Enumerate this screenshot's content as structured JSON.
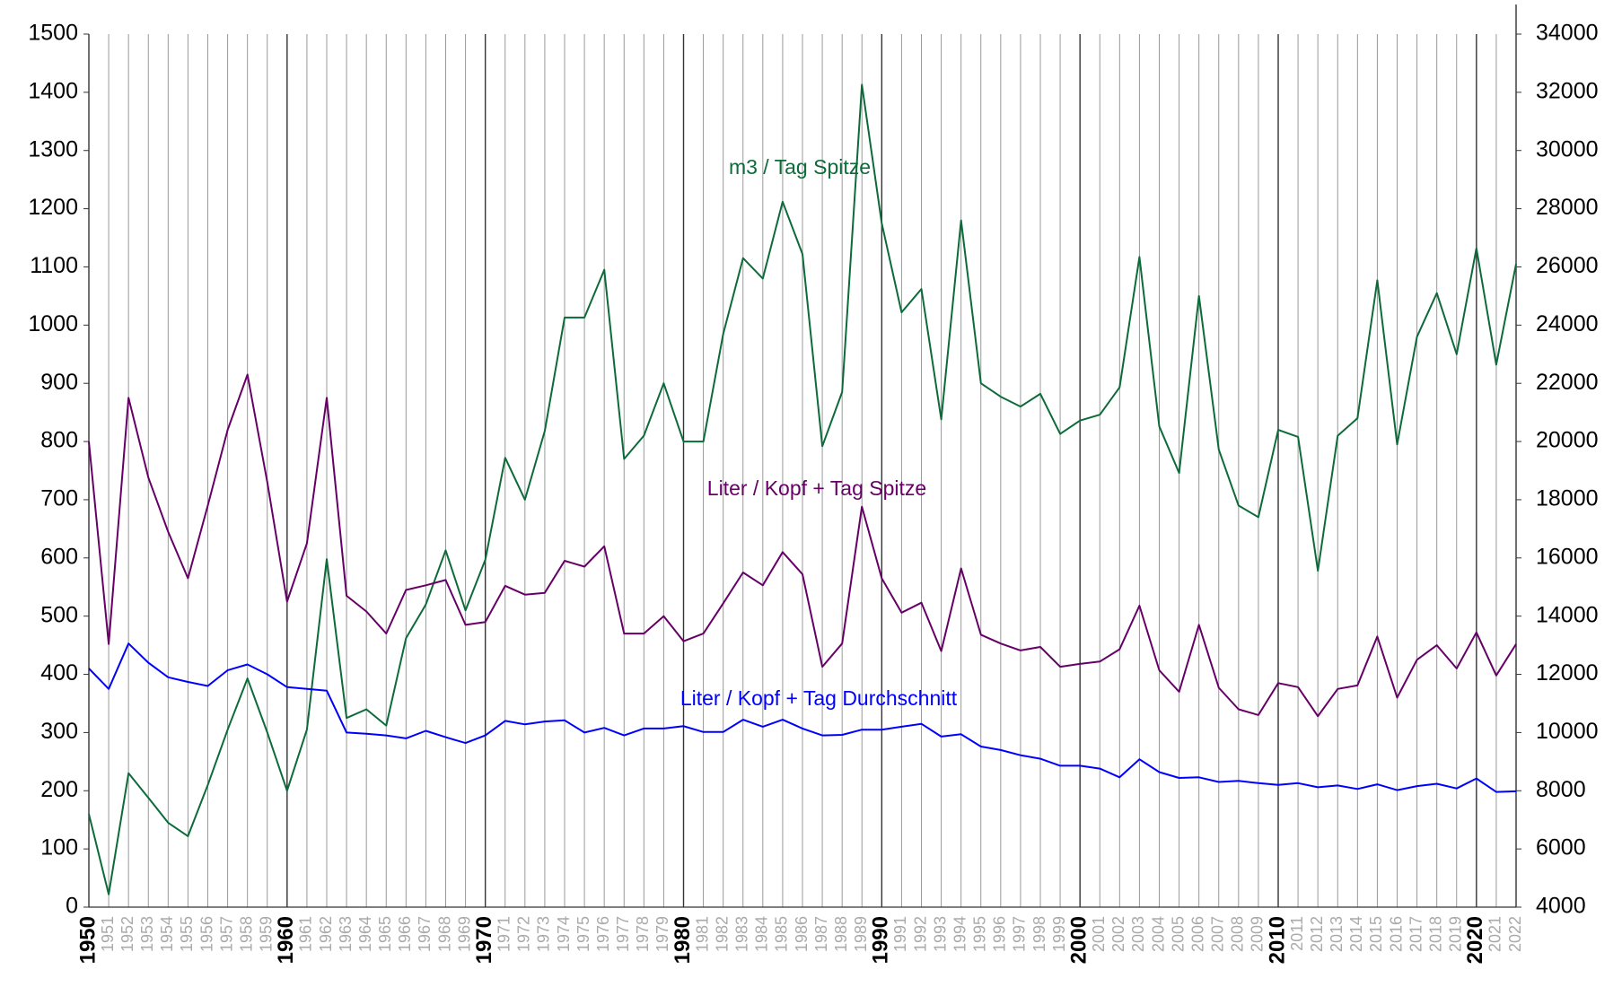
{
  "chart_data": {
    "type": "line",
    "x": [
      1950,
      1951,
      1952,
      1953,
      1954,
      1955,
      1956,
      1957,
      1958,
      1959,
      1960,
      1961,
      1962,
      1963,
      1964,
      1965,
      1966,
      1967,
      1968,
      1969,
      1970,
      1971,
      1972,
      1973,
      1974,
      1975,
      1976,
      1977,
      1978,
      1979,
      1980,
      1981,
      1982,
      1983,
      1984,
      1985,
      1986,
      1987,
      1988,
      1989,
      1990,
      1991,
      1992,
      1993,
      1994,
      1995,
      1996,
      1997,
      1998,
      1999,
      2000,
      2001,
      2002,
      2003,
      2004,
      2005,
      2006,
      2007,
      2008,
      2009,
      2010,
      2011,
      2012,
      2013,
      2014,
      2015,
      2016,
      2017,
      2018,
      2019,
      2020,
      2021,
      2022
    ],
    "xlim": [
      1950,
      2022
    ],
    "ylim": [
      0,
      1500
    ],
    "yticks": [
      0,
      100,
      200,
      300,
      400,
      500,
      600,
      700,
      800,
      900,
      1000,
      1100,
      1200,
      1300,
      1400,
      1500
    ],
    "y2lim": [
      4000,
      34000
    ],
    "y2ticks": [
      4000,
      6000,
      8000,
      10000,
      12000,
      14000,
      16000,
      18000,
      20000,
      22000,
      24000,
      26000,
      28000,
      30000,
      32000,
      34000
    ],
    "grid": true,
    "series": [
      {
        "name": "m3 / Tag Spitze",
        "color": "#0d6b3a",
        "axis": "y2",
        "values": [
          7200,
          4440,
          8600,
          7760,
          6900,
          6440,
          8200,
          10100,
          11860,
          10000,
          8000,
          10100,
          15960,
          10500,
          10800,
          10240,
          13240,
          14400,
          16260,
          14200,
          15940,
          19440,
          18000,
          20360,
          24260,
          24260,
          25900,
          19400,
          20200,
          22000,
          20000,
          20000,
          23700,
          26300,
          25600,
          28240,
          26440,
          19840,
          21700,
          32260,
          27500,
          24440,
          25240,
          20760,
          27600,
          22000,
          21540,
          21200,
          21640,
          20260,
          20720,
          20920,
          21860,
          26340,
          20520,
          18920,
          25000,
          19720,
          17800,
          17400,
          20400,
          20160,
          15560,
          20200,
          20800,
          25540,
          19900,
          23600,
          25100,
          23000,
          26640,
          22640,
          26100
        ]
      },
      {
        "name": "Liter / Kopf + Tag Spitze",
        "color": "#660066",
        "values": [
          800,
          452,
          875,
          738,
          645,
          565,
          690,
          820,
          915,
          730,
          525,
          625,
          875,
          535,
          508,
          470,
          545,
          553,
          562,
          485,
          490,
          552,
          537,
          540,
          595,
          585,
          620,
          470,
          470,
          500,
          457,
          470,
          522,
          575,
          553,
          610,
          572,
          413,
          453,
          688,
          565,
          506,
          523,
          440,
          582,
          468,
          453,
          441,
          447,
          413,
          418,
          422,
          443,
          518,
          407,
          370,
          485,
          377,
          340,
          330,
          385,
          378,
          328,
          375,
          381,
          465,
          360,
          425,
          450,
          410,
          472,
          398,
          452
        ]
      },
      {
        "name": "Liter / Kopf + Tag Durchschnitt",
        "color": "#0000ff",
        "values": [
          410,
          375,
          453,
          420,
          395,
          387,
          380,
          407,
          417,
          400,
          378,
          375,
          372,
          300,
          298,
          295,
          290,
          303,
          292,
          282,
          295,
          320,
          314,
          319,
          321,
          300,
          308,
          295,
          307,
          307,
          311,
          301,
          301,
          322,
          310,
          322,
          307,
          295,
          296,
          305,
          305,
          310,
          315,
          293,
          297,
          276,
          270,
          261,
          255,
          243,
          243,
          238,
          223,
          254,
          232,
          222,
          223,
          215,
          217,
          213,
          210,
          213,
          206,
          209,
          203,
          211,
          201,
          208,
          212,
          204,
          221,
          198,
          199
        ]
      }
    ]
  }
}
